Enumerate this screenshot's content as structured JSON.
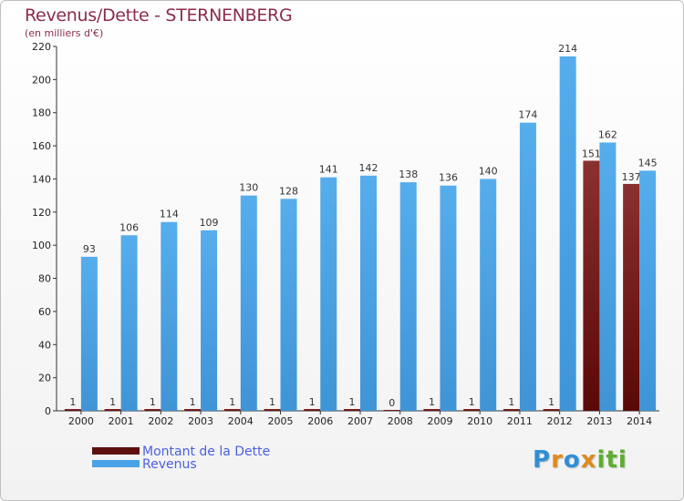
{
  "chart_data": {
    "type": "bar",
    "title": "Revenus/Dette - STERNENBERG",
    "subtitle": "(en milliers d'€)",
    "categories": [
      "2000",
      "2001",
      "2002",
      "2003",
      "2004",
      "2005",
      "2006",
      "2007",
      "2008",
      "2009",
      "2010",
      "2011",
      "2012",
      "2013",
      "2014"
    ],
    "series": [
      {
        "name": "Montant de la Dette",
        "color": "#7a1f1f",
        "values": [
          1,
          1,
          1,
          1,
          1,
          1,
          1,
          1,
          0,
          1,
          1,
          1,
          1,
          151,
          137
        ]
      },
      {
        "name": "Revenus",
        "color": "#4aa3e6",
        "values": [
          93,
          106,
          114,
          109,
          130,
          128,
          141,
          142,
          138,
          136,
          140,
          174,
          214,
          162,
          145
        ]
      }
    ],
    "ylim": [
      0,
      220
    ],
    "yticks": [
      0,
      20,
      40,
      60,
      80,
      100,
      120,
      140,
      160,
      180,
      200,
      220
    ],
    "grid": false,
    "legend_position": "bottom-left"
  },
  "legend": {
    "debt_label": "Montant de la Dette",
    "revenue_label": "Revenus"
  },
  "logo": {
    "text": "Proxiti",
    "colors": [
      "#2f8fd6",
      "#e08a1e",
      "#5cae2e"
    ]
  }
}
